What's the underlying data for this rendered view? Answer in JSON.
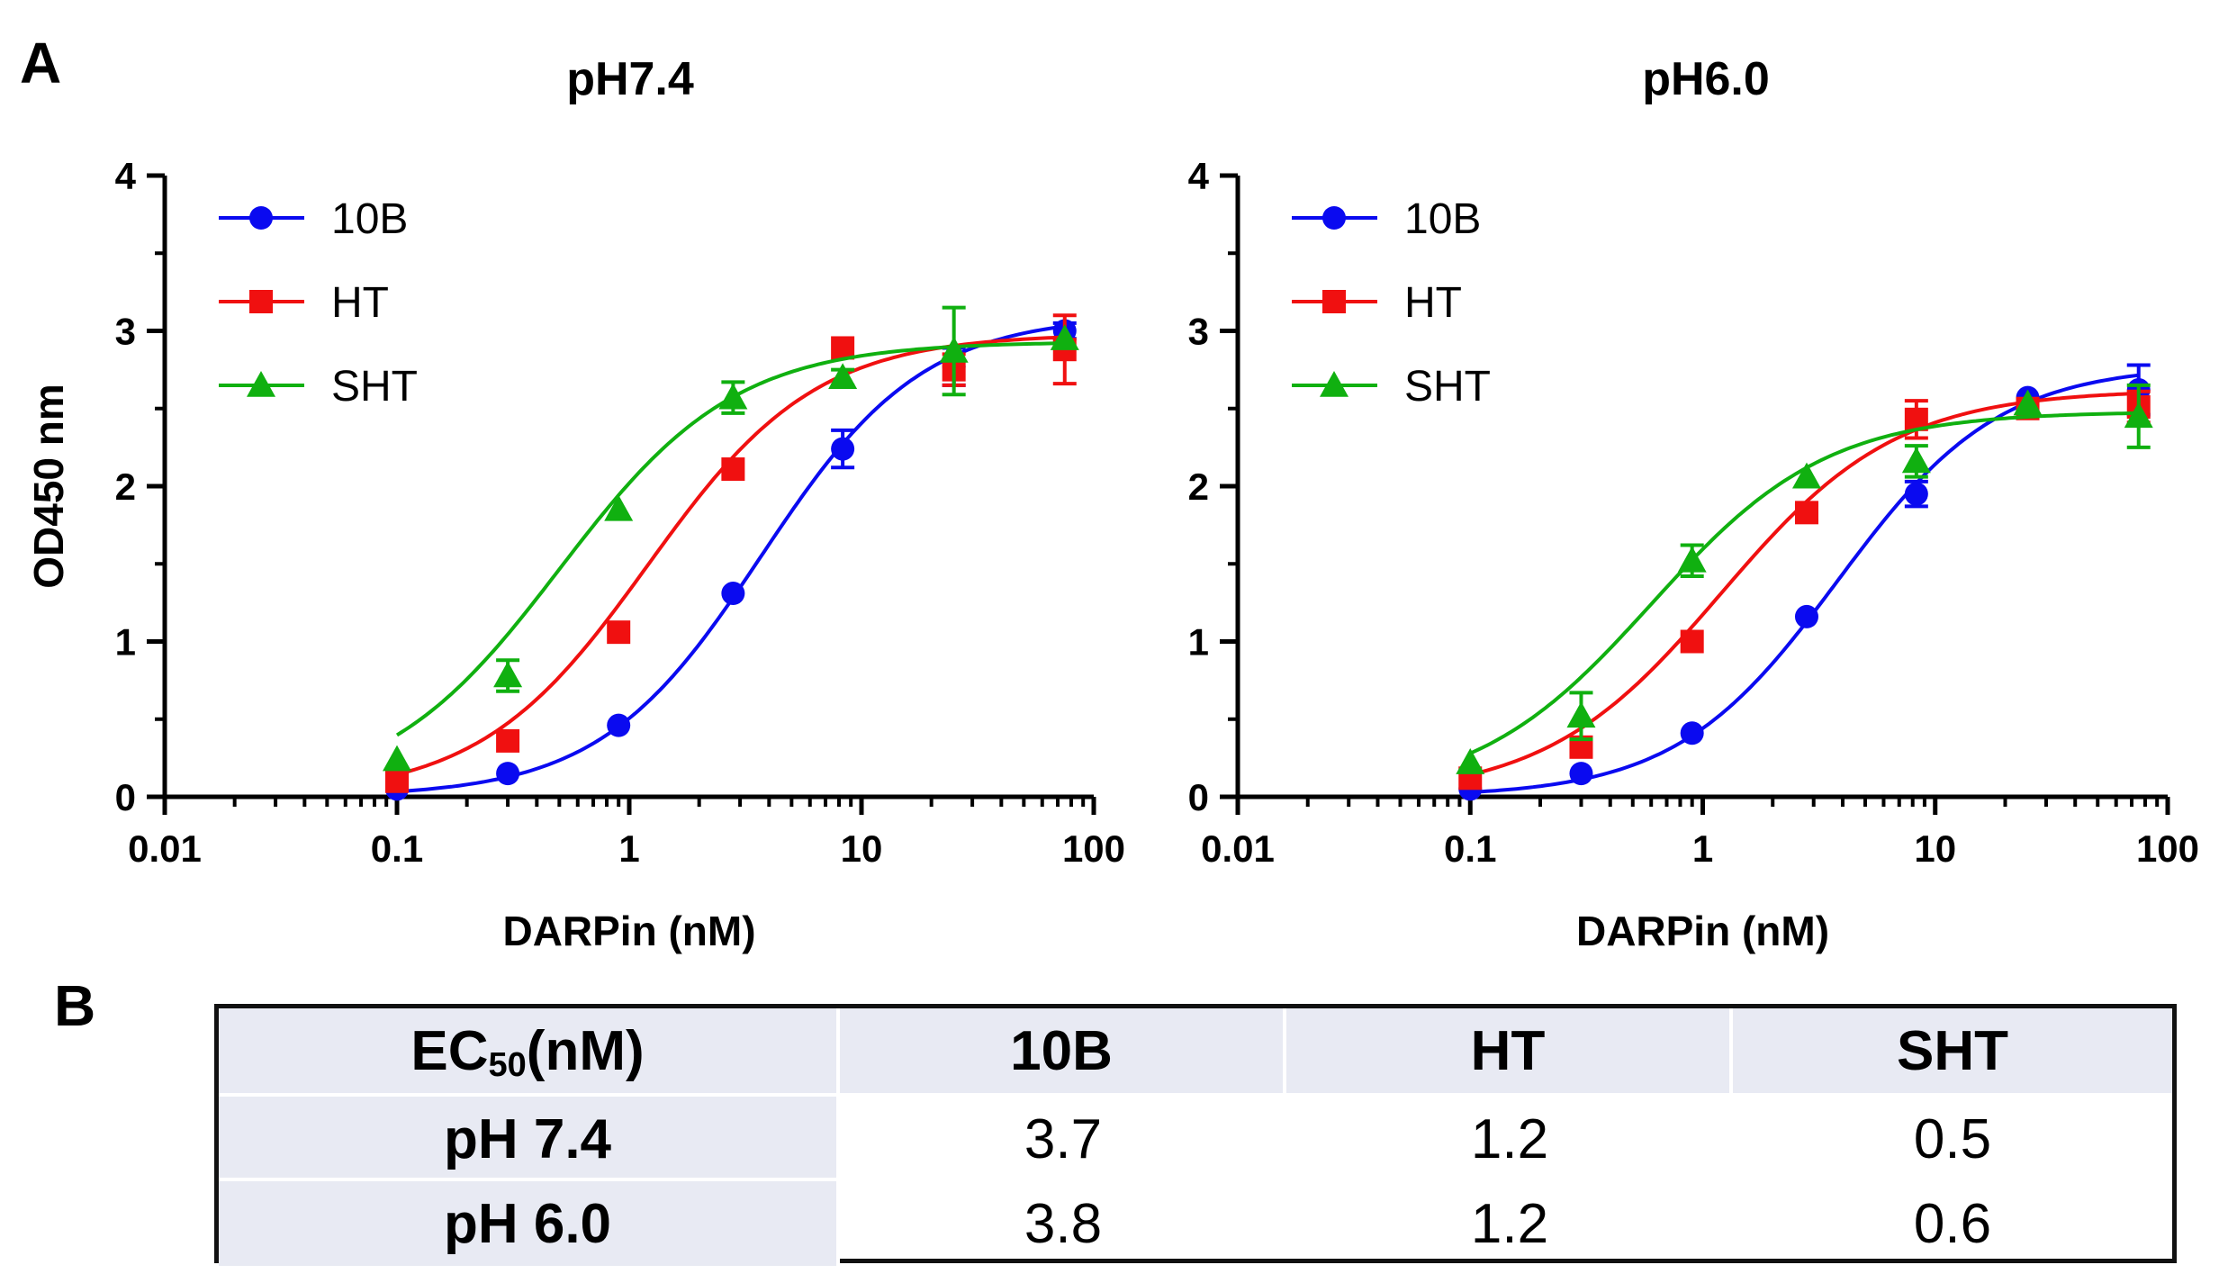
{
  "panel_labels": {
    "a": "A",
    "b": "B"
  },
  "chart_data": [
    {
      "type": "scatter",
      "title": "pH7.4",
      "xlabel": "DARPin (nM)",
      "ylabel": "OD450 nm",
      "xscale": "log",
      "xlim": [
        0.01,
        100
      ],
      "ylim": [
        0,
        4
      ],
      "xticks": [
        "0.01",
        "0.1",
        "1",
        "10",
        "100"
      ],
      "yticks": [
        "0",
        "1",
        "2",
        "3",
        "4"
      ],
      "legend_position": "top-left",
      "series": [
        {
          "name": "10B",
          "marker": "circle",
          "color": "#0a0af0",
          "x": [
            0.1,
            0.3,
            0.9,
            2.8,
            8.3,
            25,
            75
          ],
          "y": [
            0.05,
            0.15,
            0.46,
            1.31,
            2.24,
            2.77,
            3.0
          ],
          "err": [
            0,
            0,
            0,
            0,
            0.12,
            0.12,
            0.05
          ],
          "fit": {
            "bottom": 0.0,
            "top": 3.1,
            "ec50": 3.7,
            "hill": 1.25
          }
        },
        {
          "name": "HT",
          "marker": "square",
          "color": "#f01010",
          "x": [
            0.1,
            0.3,
            0.9,
            2.8,
            8.3,
            25,
            75
          ],
          "y": [
            0.1,
            0.36,
            1.06,
            2.11,
            2.89,
            2.75,
            2.88
          ],
          "err": [
            0,
            0,
            0,
            0,
            0,
            0.1,
            0.22
          ],
          "fit": {
            "bottom": 0.0,
            "top": 2.98,
            "ec50": 1.2,
            "hill": 1.2
          }
        },
        {
          "name": "SHT",
          "marker": "triangle",
          "color": "#10b010",
          "x": [
            0.1,
            0.3,
            0.9,
            2.8,
            8.3,
            25,
            75
          ],
          "y": [
            0.24,
            0.78,
            1.85,
            2.57,
            2.7,
            2.87,
            2.95
          ],
          "err": [
            0,
            0.1,
            0,
            0.1,
            0.05,
            0.28,
            0
          ],
          "fit": {
            "bottom": 0.0,
            "top": 2.93,
            "ec50": 0.5,
            "hill": 1.15
          }
        }
      ]
    },
    {
      "type": "scatter",
      "title": "pH6.0",
      "xlabel": "DARPin (nM)",
      "ylabel": "",
      "xscale": "log",
      "xlim": [
        0.01,
        100
      ],
      "ylim": [
        0,
        4
      ],
      "xticks": [
        "0.01",
        "0.1",
        "1",
        "10",
        "100"
      ],
      "yticks": [
        "0",
        "1",
        "2",
        "3",
        "4"
      ],
      "legend_position": "top-left",
      "series": [
        {
          "name": "10B",
          "marker": "circle",
          "color": "#0a0af0",
          "x": [
            0.1,
            0.3,
            0.9,
            2.8,
            8.3,
            25,
            75
          ],
          "y": [
            0.05,
            0.15,
            0.41,
            1.16,
            1.95,
            2.57,
            2.62
          ],
          "err": [
            0,
            0,
            0,
            0,
            0.08,
            0,
            0.16
          ],
          "fit": {
            "bottom": 0.0,
            "top": 2.78,
            "ec50": 3.8,
            "hill": 1.25
          }
        },
        {
          "name": "HT",
          "marker": "square",
          "color": "#f01010",
          "x": [
            0.1,
            0.3,
            0.9,
            2.8,
            8.3,
            25,
            75
          ],
          "y": [
            0.12,
            0.32,
            1.0,
            1.83,
            2.43,
            2.5,
            2.51
          ],
          "err": [
            0,
            0,
            0,
            0.05,
            0.12,
            0,
            0.1
          ],
          "fit": {
            "bottom": 0.0,
            "top": 2.62,
            "ec50": 1.2,
            "hill": 1.15
          }
        },
        {
          "name": "SHT",
          "marker": "triangle",
          "color": "#10b010",
          "x": [
            0.1,
            0.3,
            0.9,
            2.8,
            8.3,
            25,
            75
          ],
          "y": [
            0.22,
            0.52,
            1.52,
            2.06,
            2.16,
            2.53,
            2.45
          ],
          "err": [
            0,
            0.15,
            0.1,
            0,
            0.1,
            0,
            0.2
          ],
          "fit": {
            "bottom": 0.0,
            "top": 2.48,
            "ec50": 0.6,
            "hill": 1.15
          }
        }
      ]
    }
  ],
  "table": {
    "header": {
      "main": "EC",
      "sub": "50",
      "unit": " (nM)"
    },
    "columns": [
      "10B",
      "HT",
      "SHT"
    ],
    "rows": [
      {
        "label": "pH 7.4",
        "values": [
          "3.7",
          "1.2",
          "0.5"
        ]
      },
      {
        "label": "pH 6.0",
        "values": [
          "3.8",
          "1.2",
          "0.6"
        ]
      }
    ]
  }
}
